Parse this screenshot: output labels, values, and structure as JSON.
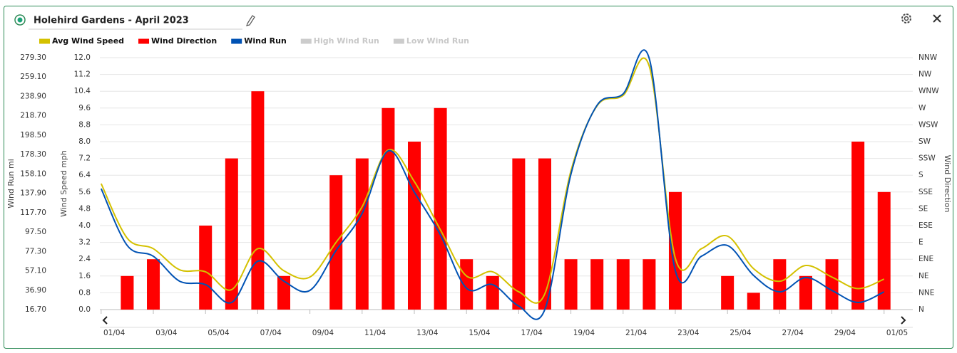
{
  "header": {
    "title": "Holehird Gardens - April 2023"
  },
  "chart_data": {
    "type": "combo",
    "x": [
      0.5,
      1.5,
      2.5,
      3.5,
      4.5,
      5.5,
      6.5,
      7.5,
      8.5,
      9.5,
      10.5,
      11.5,
      12.5,
      13.5,
      14.5,
      15.5,
      16.5,
      17.5,
      18.5,
      19.5,
      20.5,
      21.5,
      22.5,
      23.5,
      24.5,
      25.5,
      26.5,
      27.5,
      28.5,
      29.5,
      30.5
    ],
    "xlim": [
      0.45,
      31.6
    ],
    "xticks": [
      {
        "value": 1,
        "label": "01/04"
      },
      {
        "value": 3,
        "label": "03/04"
      },
      {
        "value": 5,
        "label": "05/04"
      },
      {
        "value": 7,
        "label": "07/04"
      },
      {
        "value": 9,
        "label": "09/04"
      },
      {
        "value": 11,
        "label": "11/04"
      },
      {
        "value": 13,
        "label": "13/04"
      },
      {
        "value": 15,
        "label": "15/04"
      },
      {
        "value": 17,
        "label": "17/04"
      },
      {
        "value": 19,
        "label": "19/04"
      },
      {
        "value": 21,
        "label": "21/04"
      },
      {
        "value": 23,
        "label": "23/04"
      },
      {
        "value": 25,
        "label": "25/04"
      },
      {
        "value": 27,
        "label": "27/04"
      },
      {
        "value": 29,
        "label": "29/04"
      },
      {
        "value": 31,
        "label": "01/05"
      }
    ],
    "ylabel": "Wind Speed mph",
    "ylim": [
      0,
      12
    ],
    "yticks": [
      {
        "value": 0,
        "label": "0.0"
      },
      0.8,
      1.6,
      2.4,
      3.2,
      {
        "value": 4,
        "label": "4.0"
      },
      4.8,
      5.6,
      6.4,
      7.2,
      {
        "value": 8,
        "label": "8.0"
      },
      8.8,
      9.6,
      10.4,
      11.2,
      {
        "value": 12,
        "label": "12.0"
      }
    ],
    "y2label": "Wind Run mi",
    "y2lim": [
      16.7,
      279.3
    ],
    "y2ticks": [
      {
        "value": 16.7,
        "label": "16.70"
      },
      {
        "value": 36.9,
        "label": "36.90"
      },
      {
        "value": 57.1,
        "label": "57.10"
      },
      {
        "value": 77.3,
        "label": "77.30"
      },
      {
        "value": 97.5,
        "label": "97.50"
      },
      {
        "value": 117.7,
        "label": "117.70"
      },
      {
        "value": 137.9,
        "label": "137.90"
      },
      {
        "value": 158.1,
        "label": "158.10"
      },
      {
        "value": 178.3,
        "label": "178.30"
      },
      {
        "value": 198.5,
        "label": "198.50"
      },
      {
        "value": 218.7,
        "label": "218.70"
      },
      {
        "value": 238.9,
        "label": "238.90"
      },
      {
        "value": 259.1,
        "label": "259.10"
      },
      {
        "value": 279.3,
        "label": "279.30"
      }
    ],
    "y3label": "Wind Direction",
    "y3lim": [
      0,
      337.5
    ],
    "y3ticks": [
      {
        "value": 0,
        "label": "N"
      },
      {
        "value": 22.5,
        "label": "NNE"
      },
      {
        "value": 45,
        "label": "NE"
      },
      {
        "value": 67.5,
        "label": "ENE"
      },
      {
        "value": 90,
        "label": "E"
      },
      {
        "value": 112.5,
        "label": "ESE"
      },
      {
        "value": 135,
        "label": "SE"
      },
      {
        "value": 157.5,
        "label": "SSE"
      },
      {
        "value": 180,
        "label": "S"
      },
      {
        "value": 202.5,
        "label": "SSW"
      },
      {
        "value": 225,
        "label": "SW"
      },
      {
        "value": 247.5,
        "label": "WSW"
      },
      {
        "value": 270,
        "label": "W"
      },
      {
        "value": 292.5,
        "label": "WNW"
      },
      {
        "value": 315,
        "label": "NW"
      },
      {
        "value": 337.5,
        "label": "NNW"
      }
    ],
    "grid": true,
    "series": [
      {
        "name": "Avg Wind Speed",
        "type": "line",
        "axis": "y",
        "color": "#d4c100",
        "values": [
          6.0,
          3.4,
          2.9,
          1.9,
          1.8,
          0.95,
          2.9,
          1.85,
          1.55,
          3.2,
          4.9,
          7.6,
          6.1,
          3.8,
          1.6,
          1.8,
          0.85,
          0.75,
          6.6,
          9.7,
          10.2,
          11.6,
          2.45,
          2.9,
          3.5,
          1.95,
          1.35,
          2.1,
          1.55,
          1.0,
          1.45
        ]
      },
      {
        "name": "Wind Direction",
        "type": "bar",
        "axis": "y3",
        "color": "#ff0000",
        "values": [
          0,
          45,
          67.5,
          0,
          112.5,
          202.5,
          292.5,
          45,
          0,
          180,
          202.5,
          270,
          225,
          270,
          67.5,
          45,
          202.5,
          202.5,
          67.5,
          67.5,
          67.5,
          67.5,
          157.5,
          0,
          45,
          22.5,
          67.5,
          45,
          67.5,
          225,
          157.5
        ]
      },
      {
        "name": "Wind Run",
        "type": "line",
        "axis": "y2",
        "color": "#0052b4",
        "values": [
          142.8,
          83.5,
          72.3,
          46.4,
          42.7,
          24.1,
          67.1,
          46.4,
          36.7,
          78.3,
          116.8,
          182.1,
          139.1,
          94.6,
          39.0,
          42.7,
          20.4,
          16.7,
          157.6,
          229.6,
          241.5,
          278.6,
          57.5,
          72.3,
          83.5,
          52.3,
          35.2,
          50.1,
          36.7,
          24.1,
          35.2
        ]
      }
    ],
    "hidden_series": [
      {
        "name": "High Wind Run",
        "color": "#cccccc"
      },
      {
        "name": "Low Wind Run",
        "color": "#cccccc"
      }
    ]
  }
}
